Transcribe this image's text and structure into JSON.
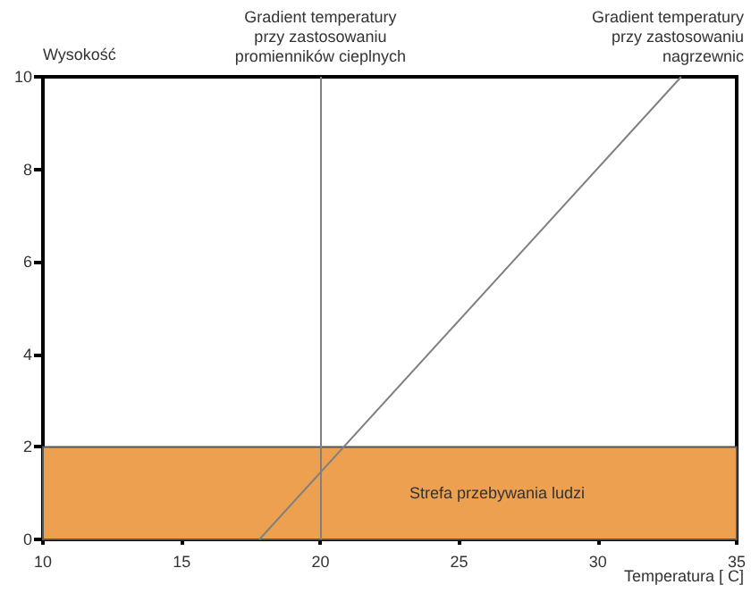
{
  "chart_data": {
    "type": "line",
    "ylabel": "Wysokość",
    "xlabel": "Temperatura [ C]",
    "series": [
      {
        "x": [
          17.8,
          33
        ],
        "values": [
          0,
          10
        ],
        "color": "#808080"
      }
    ],
    "xlim": [
      10,
      35
    ],
    "xticks": [
      10,
      15,
      20,
      25,
      30,
      35
    ],
    "ylim": [
      0,
      10
    ],
    "yticks": [
      0,
      2,
      4,
      6,
      8,
      10
    ],
    "grid": false,
    "marker": "none",
    "line_style": "solid",
    "ref_lines": [
      {
        "axis": "x",
        "value": 20,
        "label": "Gradient temperatury\nprzy zastosowaniu\npromienników cieplnych",
        "color": "#808080"
      }
    ],
    "bands": [
      {
        "axis": "y",
        "from": 0,
        "to": 2,
        "label": "Strefa przebywania ludzi",
        "color": "#eda050"
      }
    ],
    "annotations": [
      {
        "text": "Gradient temperatury\nprzy zastosowaniu\nnagrzewnic",
        "x": 33,
        "y": 10
      }
    ]
  }
}
